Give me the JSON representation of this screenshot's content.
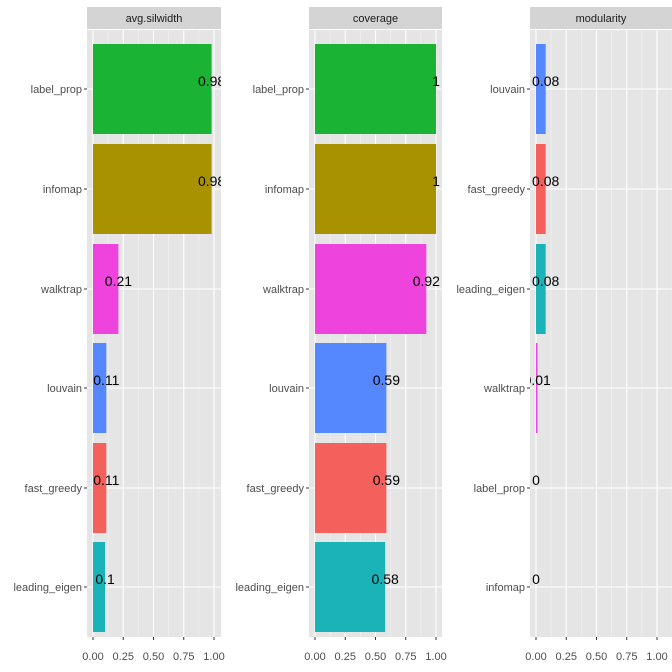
{
  "chart_data": [
    {
      "type": "bar",
      "orientation": "horizontal",
      "title": "avg.silwidth",
      "categories": [
        "label_prop",
        "infomap",
        "walktrap",
        "louvain",
        "fast_greedy",
        "leading_eigen"
      ],
      "values": [
        0.98,
        0.98,
        0.21,
        0.11,
        0.11,
        0.1
      ],
      "labels": [
        "0.98",
        "0.98",
        "0.21",
        "0.11",
        "0.11",
        "0.1"
      ],
      "xlim": [
        -0.09,
        1.06
      ],
      "xticks": [
        "0.00",
        "0.25",
        "0.50",
        "0.75",
        "1.00"
      ],
      "grid": true
    },
    {
      "type": "bar",
      "orientation": "horizontal",
      "title": "coverage",
      "categories": [
        "label_prop",
        "infomap",
        "walktrap",
        "louvain",
        "fast_greedy",
        "leading_eigen"
      ],
      "values": [
        1,
        1,
        0.92,
        0.59,
        0.59,
        0.58
      ],
      "labels": [
        "1",
        "1",
        "0.92",
        "0.59",
        "0.59",
        "0.58"
      ],
      "xlim": [
        -0.09,
        1.06
      ],
      "xticks": [
        "0.00",
        "0.25",
        "0.50",
        "0.75",
        "1.00"
      ],
      "grid": true
    },
    {
      "type": "bar",
      "orientation": "horizontal",
      "title": "modularity",
      "categories": [
        "louvain",
        "fast_greedy",
        "leading_eigen",
        "walktrap",
        "label_prop",
        "infomap"
      ],
      "values": [
        0.08,
        0.08,
        0.08,
        0.01,
        0,
        0
      ],
      "labels": [
        "0.08",
        "0.08",
        "0.08",
        "0.01",
        "0",
        "0"
      ],
      "xlim": [
        -0.05,
        1.12
      ],
      "xticks": [
        "0.00",
        "0.25",
        "0.50",
        "0.75",
        "1.00"
      ],
      "grid": true
    }
  ],
  "colors": {
    "label_prop": "#1AB334",
    "infomap": "#A89200",
    "walktrap": "#EE44DD",
    "louvain": "#5588FF",
    "fast_greedy": "#F4615C",
    "leading_eigen": "#1AB3B8",
    "panel_bg": "#E5E5E5",
    "strip_bg": "#D4D4D4"
  },
  "legend": "none"
}
